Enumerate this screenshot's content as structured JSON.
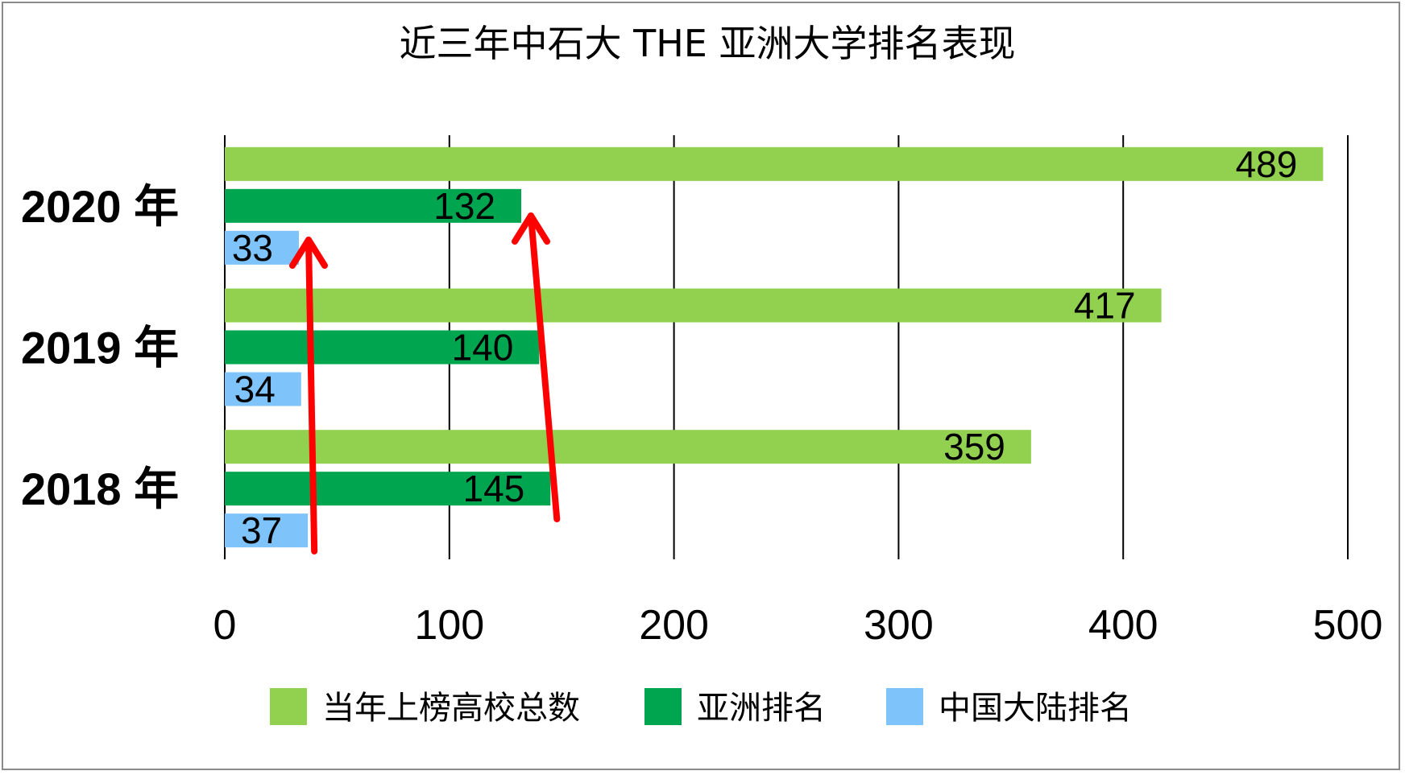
{
  "chart_data": {
    "type": "bar",
    "orientation": "horizontal",
    "title": "近三年中石大 THE 亚洲大学排名表现",
    "categories": [
      "2020 年",
      "2019 年",
      "2018 年"
    ],
    "series": [
      {
        "name": "当年上榜高校总数",
        "color": "#92d050",
        "values": [
          489,
          417,
          359
        ]
      },
      {
        "name": "亚洲排名",
        "color": "#00a550",
        "values": [
          132,
          140,
          145
        ]
      },
      {
        "name": "中国大陆排名",
        "color": "#7ec4fa",
        "values": [
          33,
          34,
          37
        ]
      }
    ],
    "xlim": [
      0,
      500
    ],
    "xticks": [
      "0",
      "100",
      "200",
      "300",
      "400",
      "500"
    ],
    "grid": "vertical",
    "legend_position": "bottom",
    "annotations": [
      {
        "type": "arrow",
        "color": "#ff0000",
        "from_value": 37,
        "to_value": 33,
        "direction": "up"
      },
      {
        "type": "arrow",
        "color": "#ff0000",
        "from_value": 145,
        "to_value": 132,
        "direction": "up"
      }
    ]
  }
}
